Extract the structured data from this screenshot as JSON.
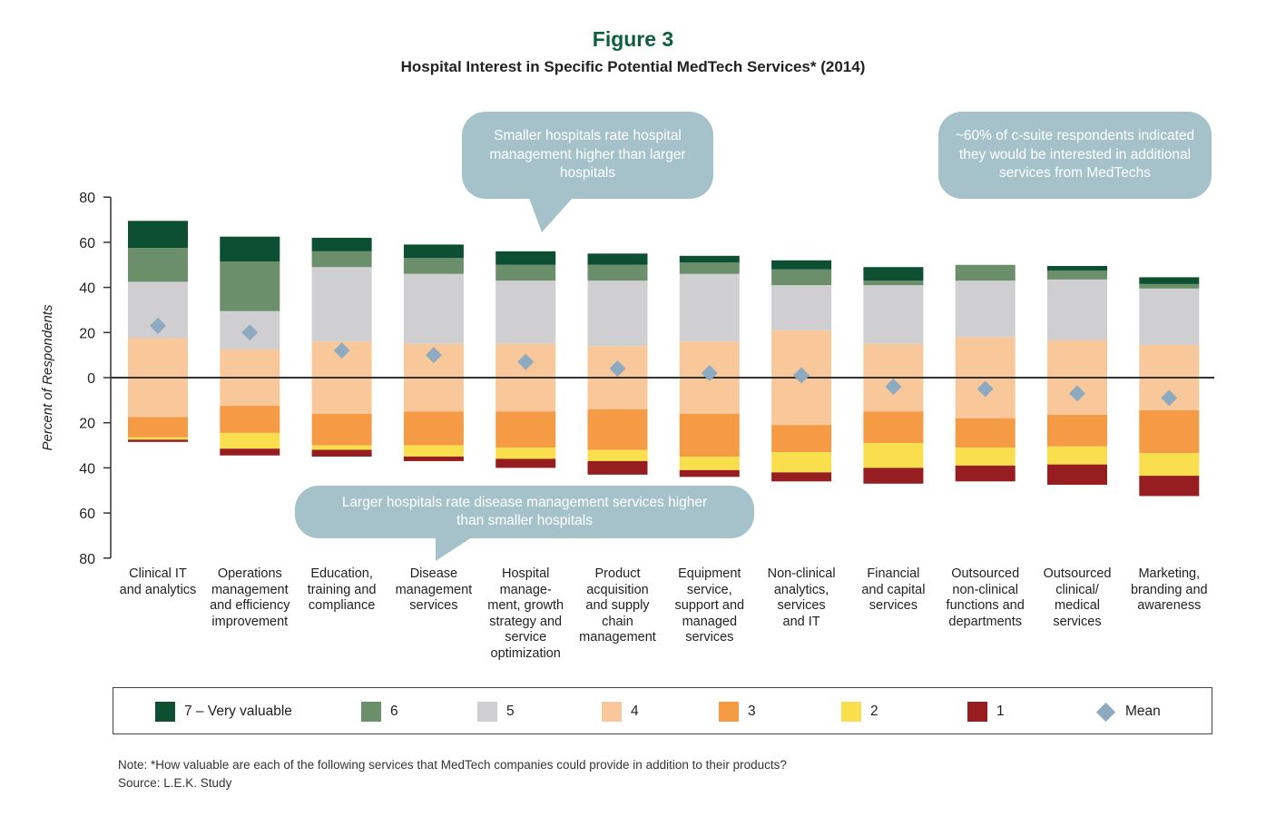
{
  "figure": {
    "title": "Figure 3",
    "subtitle": "Hospital Interest in Specific Potential MedTech Services* (2014)"
  },
  "callouts": {
    "top_center": "Smaller hospitals rate hospital management higher than larger hospitals",
    "top_right": "~60% of c-suite respondents indicated they would be interested in additional services from MedTechs",
    "bottom": "Larger hospitals rate disease management services higher than smaller hospitals"
  },
  "legend": {
    "v7": "7 – Very valuable",
    "v6": "6",
    "v5": "5",
    "v4": "4",
    "v3": "3",
    "v2": "2",
    "v1": "1",
    "mean": "Mean"
  },
  "footnote": {
    "note": "Note: *How valuable are each of the following services that MedTech companies could provide in addition to their products?",
    "source": "Source: L.E.K. Study"
  },
  "colors": {
    "v7": "#0d4f33",
    "v6": "#6b8e6b",
    "v5": "#cfcfd1",
    "v4": "#f9c89a",
    "v3": "#f59a45",
    "v2": "#f9df4d",
    "v1": "#961d20",
    "mean": "#8eaac0"
  },
  "chart_data": {
    "type": "bar",
    "stacked": "diverging",
    "ylabel": "Percent of Respondents",
    "ylim": [
      -80,
      80
    ],
    "y_ticks": [
      "80",
      "60",
      "40",
      "20",
      "0",
      "20",
      "40",
      "60",
      "80"
    ],
    "categories": [
      [
        "Clinical IT",
        "and analytics"
      ],
      [
        "Operations",
        "management",
        "and efficiency",
        "improvement"
      ],
      [
        "Education,",
        "training and",
        "compliance"
      ],
      [
        "Disease",
        "management",
        "services"
      ],
      [
        "Hospital",
        "manage-",
        "ment, growth",
        "strategy and",
        "service",
        "optimization"
      ],
      [
        "Product",
        "acquisition",
        "and supply",
        "chain",
        "management"
      ],
      [
        "Equipment",
        "service,",
        "support and",
        "managed",
        "services"
      ],
      [
        "Non-clinical",
        "analytics,",
        "services",
        "and IT"
      ],
      [
        "Financial",
        "and capital",
        "services"
      ],
      [
        "Outsourced",
        "non-clinical",
        "functions and",
        "departments"
      ],
      [
        "Outsourced",
        "clinical/",
        "medical",
        "services"
      ],
      [
        "Marketing,",
        "branding and",
        "awareness"
      ]
    ],
    "series": [
      {
        "name": "7 – Very valuable",
        "values": [
          12,
          11,
          6,
          6,
          6,
          5,
          3,
          4,
          6,
          0,
          2,
          3
        ]
      },
      {
        "name": "6",
        "values": [
          15,
          22,
          7,
          7,
          7,
          7,
          5,
          7,
          2,
          7,
          4,
          2
        ]
      },
      {
        "name": "5",
        "values": [
          25,
          17,
          33,
          31,
          28,
          29,
          30,
          20,
          26,
          25,
          27,
          25
        ]
      },
      {
        "name": "4",
        "values": [
          35,
          25,
          32,
          30,
          30,
          28,
          32,
          42,
          30,
          36,
          33,
          29
        ]
      },
      {
        "name": "3",
        "values": [
          9,
          12,
          14,
          15,
          16,
          18,
          19,
          12,
          14,
          13,
          14,
          19
        ]
      },
      {
        "name": "2",
        "values": [
          1,
          7,
          2,
          5,
          5,
          5,
          6,
          9,
          11,
          8,
          8,
          10
        ]
      },
      {
        "name": "1",
        "values": [
          1,
          3,
          3,
          2,
          4,
          6,
          3,
          4,
          7,
          7,
          9,
          9
        ]
      },
      {
        "name": "Mean",
        "values": [
          23,
          20,
          12,
          10,
          7,
          4,
          2,
          1,
          -4,
          -5,
          -7,
          -9
        ]
      }
    ]
  }
}
